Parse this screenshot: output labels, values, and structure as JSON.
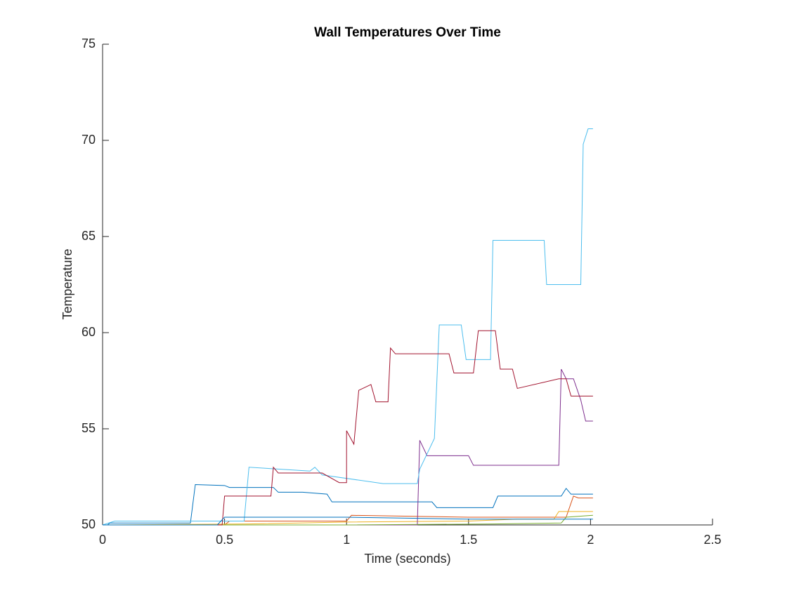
{
  "chart_data": {
    "type": "line",
    "title": "Wall Temperatures Over Time",
    "x_label": "Time (seconds)",
    "y_label": "Temperature",
    "xlim": [
      0,
      2.5
    ],
    "xticks": [
      0,
      0.5,
      1,
      1.5,
      2,
      2.5
    ],
    "ylim": [
      50,
      75
    ],
    "yticks": [
      50,
      55,
      60,
      65,
      70,
      75
    ],
    "grid": false,
    "series": [
      {
        "color": "#0072BD",
        "x": [
          0,
          0.02,
          0.03,
          0.36,
          0.38,
          0.5,
          0.52,
          0.7,
          0.72,
          0.82,
          0.92,
          0.94,
          1.35,
          1.37,
          1.6,
          1.62,
          1.88,
          1.9,
          1.92,
          2.01
        ],
        "values": [
          50,
          50,
          50.1,
          50.1,
          52.1,
          52.05,
          51.95,
          51.95,
          51.7,
          51.7,
          51.6,
          51.2,
          51.2,
          50.9,
          50.9,
          51.5,
          51.5,
          51.9,
          51.6,
          51.6
        ]
      },
      {
        "color": "#D95319",
        "x": [
          0,
          0.5,
          0.52,
          1.0,
          1.02,
          1.5,
          1.9,
          1.93,
          1.95,
          2.01
        ],
        "values": [
          50,
          50,
          50.2,
          50.2,
          50.5,
          50.4,
          50.4,
          51.5,
          51.4,
          51.4
        ]
      },
      {
        "color": "#EDB120",
        "x": [
          0,
          0.6,
          1.0,
          1.5,
          1.7,
          1.85,
          1.87,
          2.01
        ],
        "values": [
          50,
          50.05,
          50.15,
          50.2,
          50.3,
          50.3,
          50.7,
          50.7
        ]
      },
      {
        "color": "#7E2F8E",
        "x": [
          0,
          1.29,
          1.3,
          1.33,
          1.5,
          1.52,
          1.87,
          1.88,
          1.9,
          1.93,
          1.96,
          1.98,
          2.01
        ],
        "values": [
          50,
          50,
          54.4,
          53.6,
          53.6,
          53.1,
          53.1,
          58.1,
          57.6,
          57.6,
          56.5,
          55.4,
          55.4
        ]
      },
      {
        "color": "#77AC30",
        "x": [
          0,
          1.0,
          1.6,
          1.88,
          1.9,
          2.01
        ],
        "values": [
          50,
          50,
          50.05,
          50.1,
          50.4,
          50.5
        ]
      },
      {
        "color": "#4DBEEE",
        "x": [
          0,
          0.05,
          0.58,
          0.6,
          0.85,
          0.87,
          0.9,
          1.15,
          1.29,
          1.3,
          1.36,
          1.38,
          1.47,
          1.49,
          1.59,
          1.6,
          1.81,
          1.82,
          1.96,
          1.97,
          1.99,
          2.01
        ],
        "values": [
          50,
          50.2,
          50.2,
          53.0,
          52.8,
          53.0,
          52.6,
          52.15,
          52.15,
          52.9,
          54.5,
          60.4,
          60.4,
          58.6,
          58.6,
          64.8,
          64.8,
          62.5,
          62.5,
          69.8,
          70.6,
          70.6
        ]
      },
      {
        "color": "#A2142F",
        "x": [
          0,
          0.49,
          0.5,
          0.69,
          0.7,
          0.72,
          0.9,
          0.97,
          1.0,
          1.0,
          1.03,
          1.05,
          1.1,
          1.12,
          1.17,
          1.18,
          1.2,
          1.42,
          1.44,
          1.52,
          1.54,
          1.61,
          1.63,
          1.68,
          1.7,
          1.87,
          1.9,
          1.92,
          2.01
        ],
        "values": [
          50,
          50,
          51.5,
          51.5,
          53.0,
          52.7,
          52.7,
          52.2,
          52.2,
          54.9,
          54.2,
          57.0,
          57.3,
          56.4,
          56.4,
          59.2,
          58.9,
          58.9,
          57.9,
          57.9,
          60.1,
          60.1,
          58.1,
          58.1,
          57.1,
          57.6,
          57.6,
          56.7,
          56.7
        ]
      },
      {
        "color": "#0072BD",
        "x": [
          0,
          0.47,
          0.5,
          1.0,
          1.5,
          2.01
        ],
        "values": [
          50,
          50,
          50.4,
          50.4,
          50.3,
          50.3
        ]
      }
    ]
  }
}
